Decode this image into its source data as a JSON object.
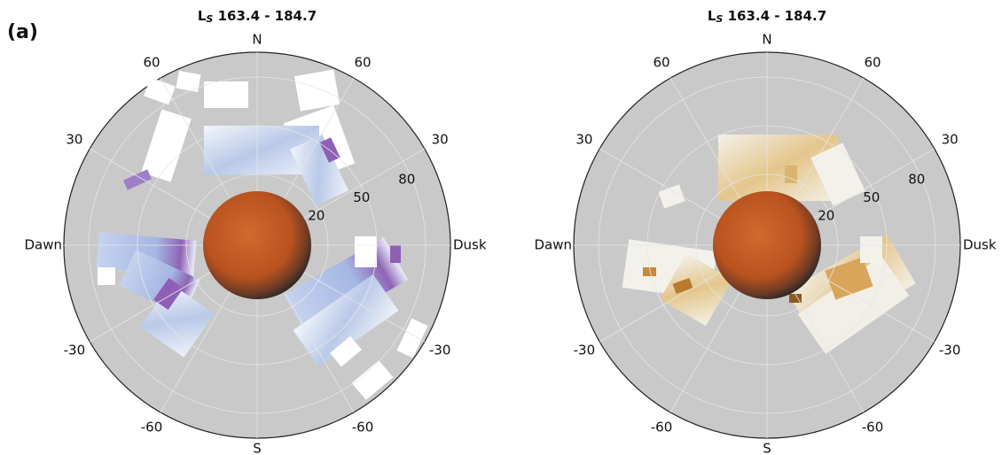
{
  "panel_label": "(a)",
  "panels": [
    {
      "title": {
        "main": "L",
        "sub": "S",
        "text": " 163.4 - 184.7"
      },
      "north": "N",
      "south": "S",
      "dawn": "Dawn",
      "dusk": "Dusk",
      "left_angles": [
        "60",
        "30",
        "-30",
        "-60"
      ],
      "right_angles": [
        "60",
        "30",
        "-30",
        "-60"
      ],
      "radii": [
        "20",
        "50",
        "80"
      ]
    },
    {
      "title": {
        "main": "L",
        "sub": "S",
        "text": " 163.4 - 184.7"
      },
      "north": "N",
      "south": "S",
      "dawn": "Dawn",
      "dusk": "Dusk",
      "left_angles": [
        "60",
        "30",
        "-30",
        "-60"
      ],
      "right_angles": [
        "60",
        "30",
        "-30",
        "-60"
      ],
      "radii": [
        "20",
        "50",
        "80"
      ]
    }
  ]
}
